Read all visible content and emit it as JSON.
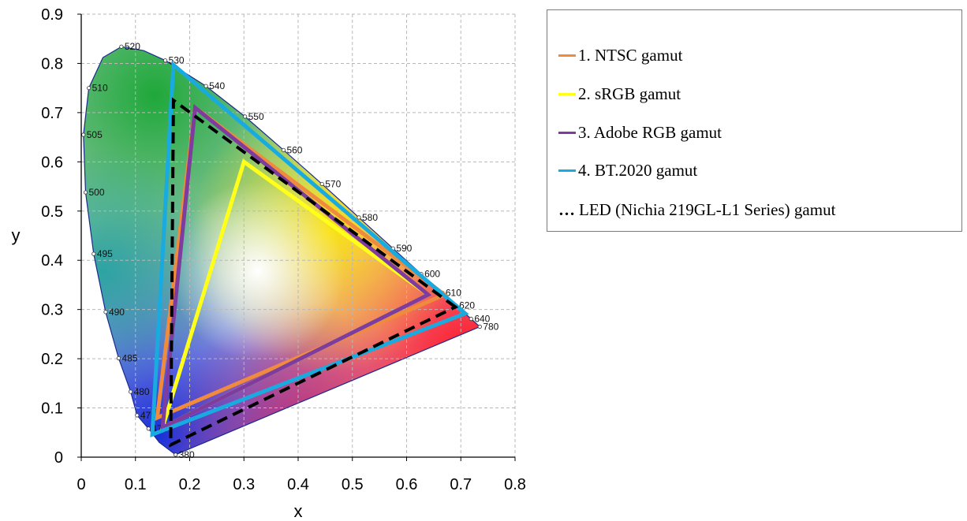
{
  "chart_data": {
    "type": "scatter",
    "title": "",
    "xlabel": "x",
    "ylabel": "y",
    "xlim": [
      0,
      0.8
    ],
    "ylim": [
      0,
      0.9
    ],
    "x_ticks": [
      "0",
      "0.1",
      "0.2",
      "0.3",
      "0.4",
      "0.5",
      "0.6",
      "0.7",
      "0.8"
    ],
    "y_ticks": [
      "0",
      "0.1",
      "0.2",
      "0.3",
      "0.4",
      "0.5",
      "0.6",
      "0.7",
      "0.8",
      "0.9"
    ],
    "grid": true,
    "legend_position": "right",
    "spectral_locus": {
      "points": [
        [
          0.174,
          0.005
        ],
        [
          0.144,
          0.03
        ],
        [
          0.124,
          0.058
        ],
        [
          0.103,
          0.085
        ],
        [
          0.091,
          0.133
        ],
        [
          0.069,
          0.201
        ],
        [
          0.045,
          0.295
        ],
        [
          0.023,
          0.413
        ],
        [
          0.008,
          0.538
        ],
        [
          0.004,
          0.655
        ],
        [
          0.014,
          0.75
        ],
        [
          0.04,
          0.812
        ],
        [
          0.074,
          0.834
        ],
        [
          0.115,
          0.826
        ],
        [
          0.155,
          0.806
        ],
        [
          0.23,
          0.754
        ],
        [
          0.302,
          0.692
        ],
        [
          0.373,
          0.624
        ],
        [
          0.444,
          0.555
        ],
        [
          0.512,
          0.487
        ],
        [
          0.575,
          0.424
        ],
        [
          0.627,
          0.372
        ],
        [
          0.666,
          0.334
        ],
        [
          0.691,
          0.308
        ],
        [
          0.719,
          0.281
        ],
        [
          0.735,
          0.265
        ]
      ],
      "labels": [
        {
          "nm": "380",
          "x": 0.174,
          "y": 0.005
        },
        {
          "nm": "470",
          "x": 0.124,
          "y": 0.058
        },
        {
          "nm": "475",
          "x": 0.103,
          "y": 0.085
        },
        {
          "nm": "480",
          "x": 0.091,
          "y": 0.133
        },
        {
          "nm": "485",
          "x": 0.069,
          "y": 0.201
        },
        {
          "nm": "490",
          "x": 0.045,
          "y": 0.295
        },
        {
          "nm": "495",
          "x": 0.023,
          "y": 0.413
        },
        {
          "nm": "500",
          "x": 0.008,
          "y": 0.538
        },
        {
          "nm": "505",
          "x": 0.004,
          "y": 0.655
        },
        {
          "nm": "510",
          "x": 0.014,
          "y": 0.75
        },
        {
          "nm": "520",
          "x": 0.074,
          "y": 0.834
        },
        {
          "nm": "530",
          "x": 0.155,
          "y": 0.806
        },
        {
          "nm": "540",
          "x": 0.23,
          "y": 0.754
        },
        {
          "nm": "550",
          "x": 0.302,
          "y": 0.692
        },
        {
          "nm": "560",
          "x": 0.373,
          "y": 0.624
        },
        {
          "nm": "570",
          "x": 0.444,
          "y": 0.555
        },
        {
          "nm": "580",
          "x": 0.512,
          "y": 0.487
        },
        {
          "nm": "590",
          "x": 0.575,
          "y": 0.424
        },
        {
          "nm": "600",
          "x": 0.627,
          "y": 0.372
        },
        {
          "nm": "610",
          "x": 0.666,
          "y": 0.334
        },
        {
          "nm": "620",
          "x": 0.691,
          "y": 0.308
        },
        {
          "nm": "640",
          "x": 0.719,
          "y": 0.281
        },
        {
          "nm": "780",
          "x": 0.735,
          "y": 0.265
        }
      ]
    },
    "series": [
      {
        "name": "1. NTSC gamut",
        "color": "#F08A3C",
        "style": "solid",
        "points": [
          [
            0.67,
            0.33
          ],
          [
            0.21,
            0.71
          ],
          [
            0.14,
            0.08
          ]
        ]
      },
      {
        "name": "2. sRGB gamut",
        "color": "#FFFF1A",
        "style": "solid",
        "points": [
          [
            0.64,
            0.33
          ],
          [
            0.3,
            0.6
          ],
          [
            0.15,
            0.06
          ]
        ]
      },
      {
        "name": "3. Adobe RGB gamut",
        "color": "#7E3C9E",
        "style": "solid",
        "points": [
          [
            0.64,
            0.33
          ],
          [
            0.21,
            0.71
          ],
          [
            0.15,
            0.06
          ]
        ]
      },
      {
        "name": "4. BT.2020 gamut",
        "color": "#19ABE0",
        "style": "solid",
        "points": [
          [
            0.708,
            0.292
          ],
          [
            0.17,
            0.797
          ],
          [
            0.131,
            0.046
          ]
        ]
      },
      {
        "name": "LED (Nichia 219GL-L1 Series) gamut",
        "color": "#000000",
        "style": "dashed",
        "points": [
          [
            0.69,
            0.305
          ],
          [
            0.17,
            0.725
          ],
          [
            0.165,
            0.025
          ]
        ]
      }
    ]
  },
  "legend": {
    "items": [
      {
        "marker": "—",
        "label": "1. NTSC gamut",
        "color": "#F08A3C"
      },
      {
        "marker": "—",
        "label": "2. sRGB gamut",
        "color": "#FFFF1A"
      },
      {
        "marker": "—",
        "label": "3. Adobe RGB gamut",
        "color": "#7E3C9E"
      },
      {
        "marker": "—",
        "label": "4. BT.2020 gamut",
        "color": "#19ABE0"
      },
      {
        "marker": "…",
        "label": "LED (Nichia 219GL-L1 Series) gamut",
        "color": "#000000"
      }
    ]
  }
}
